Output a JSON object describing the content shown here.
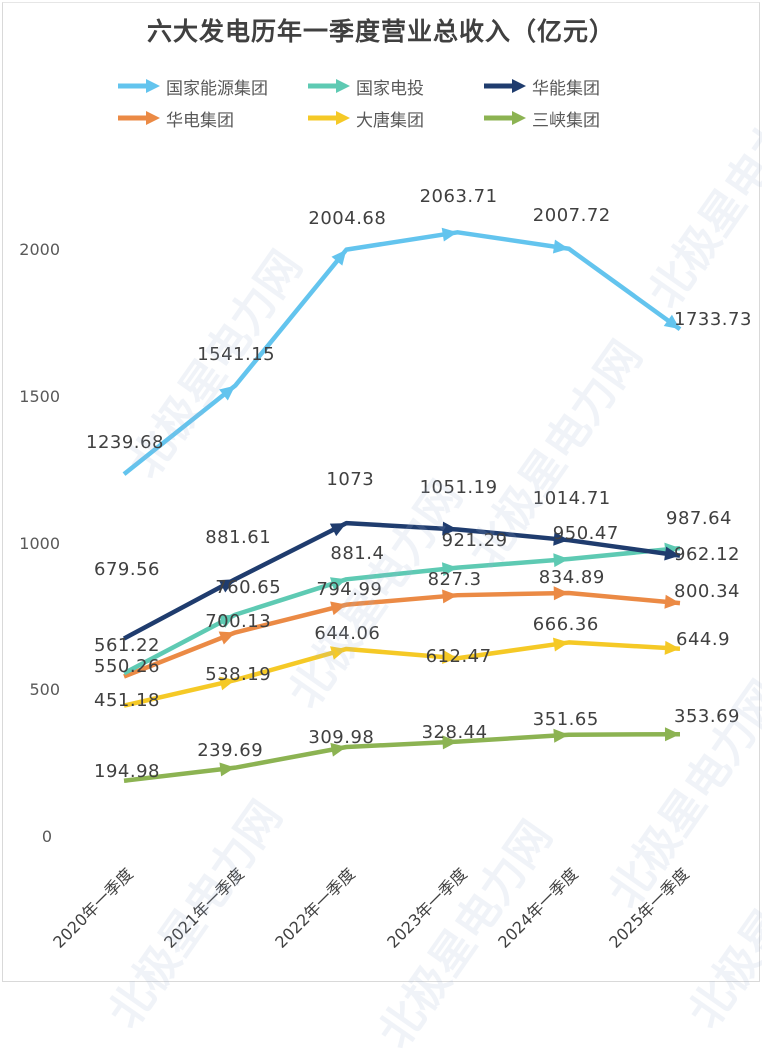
{
  "chart_data": {
    "type": "line",
    "title": "六大发电历年一季度营业总收入（亿元）",
    "xlabel": "",
    "ylabel": "",
    "categories": [
      "2020年一季度",
      "2021年一季度",
      "2022年一季度",
      "2023年一季度",
      "2024年一季度",
      "2025年一季度"
    ],
    "ylim": [
      0,
      2000
    ],
    "yticks": [
      0,
      500,
      1000,
      1500,
      2000
    ],
    "grid": false,
    "legend_position": "top",
    "series": [
      {
        "name": "国家能源集团",
        "color": "#63c4ee",
        "values": [
          1239.68,
          1541.15,
          2004.68,
          2063.71,
          2007.72,
          1733.73
        ]
      },
      {
        "name": "国家电投",
        "color": "#5ecab3",
        "values": [
          561.22,
          760.65,
          881.4,
          921.29,
          950.47,
          987.64
        ]
      },
      {
        "name": "华能集团",
        "color": "#1f3c6e",
        "values": [
          679.56,
          881.61,
          1073,
          1051.19,
          1014.71,
          962.12
        ]
      },
      {
        "name": "华电集团",
        "color": "#eb8a45",
        "values": [
          550.26,
          700.13,
          794.99,
          827.3,
          834.89,
          800.34
        ]
      },
      {
        "name": "大唐集团",
        "color": "#f5c926",
        "values": [
          451.18,
          538.19,
          644.06,
          612.47,
          666.36,
          644.9
        ]
      },
      {
        "name": "三峡集团",
        "color": "#8cb352",
        "values": [
          194.98,
          239.69,
          309.98,
          328.44,
          351.65,
          353.69
        ]
      }
    ],
    "data_labels": true
  },
  "watermark": "北极星电力网"
}
